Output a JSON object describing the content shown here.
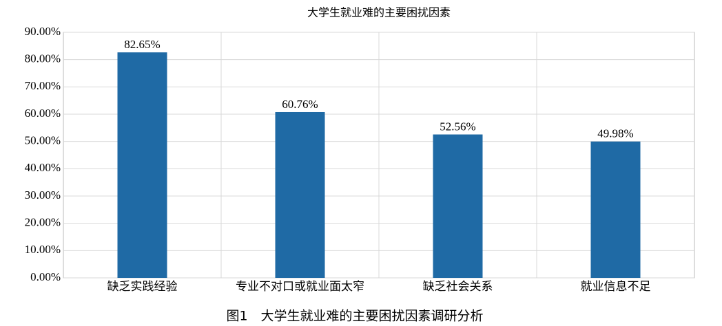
{
  "chart_data": {
    "type": "bar",
    "title": "大学生就业难的主要困扰因素",
    "caption": "图1　大学生就业难的主要困扰因素调研分析",
    "categories": [
      "缺乏实践经验",
      "专业不对口或就业面太窄",
      "缺乏社会关系",
      "就业信息不足"
    ],
    "values": [
      82.65,
      60.76,
      52.56,
      49.98
    ],
    "value_labels": [
      "82.65%",
      "60.76%",
      "52.56%",
      "49.98%"
    ],
    "color": "#1f6aa5",
    "ylim": [
      0,
      90
    ],
    "yticks": [
      {
        "value": 0,
        "label": "0.00%"
      },
      {
        "value": 10,
        "label": "10.00%"
      },
      {
        "value": 20,
        "label": "20.00%"
      },
      {
        "value": 30,
        "label": "30.00%"
      },
      {
        "value": 40,
        "label": "40.00%"
      },
      {
        "value": 50,
        "label": "50.00%"
      },
      {
        "value": 60,
        "label": "60.00%"
      },
      {
        "value": 70,
        "label": "70.00%"
      },
      {
        "value": 80,
        "label": "80.00%"
      },
      {
        "value": 90,
        "label": "90.00%"
      }
    ],
    "grid": true
  }
}
